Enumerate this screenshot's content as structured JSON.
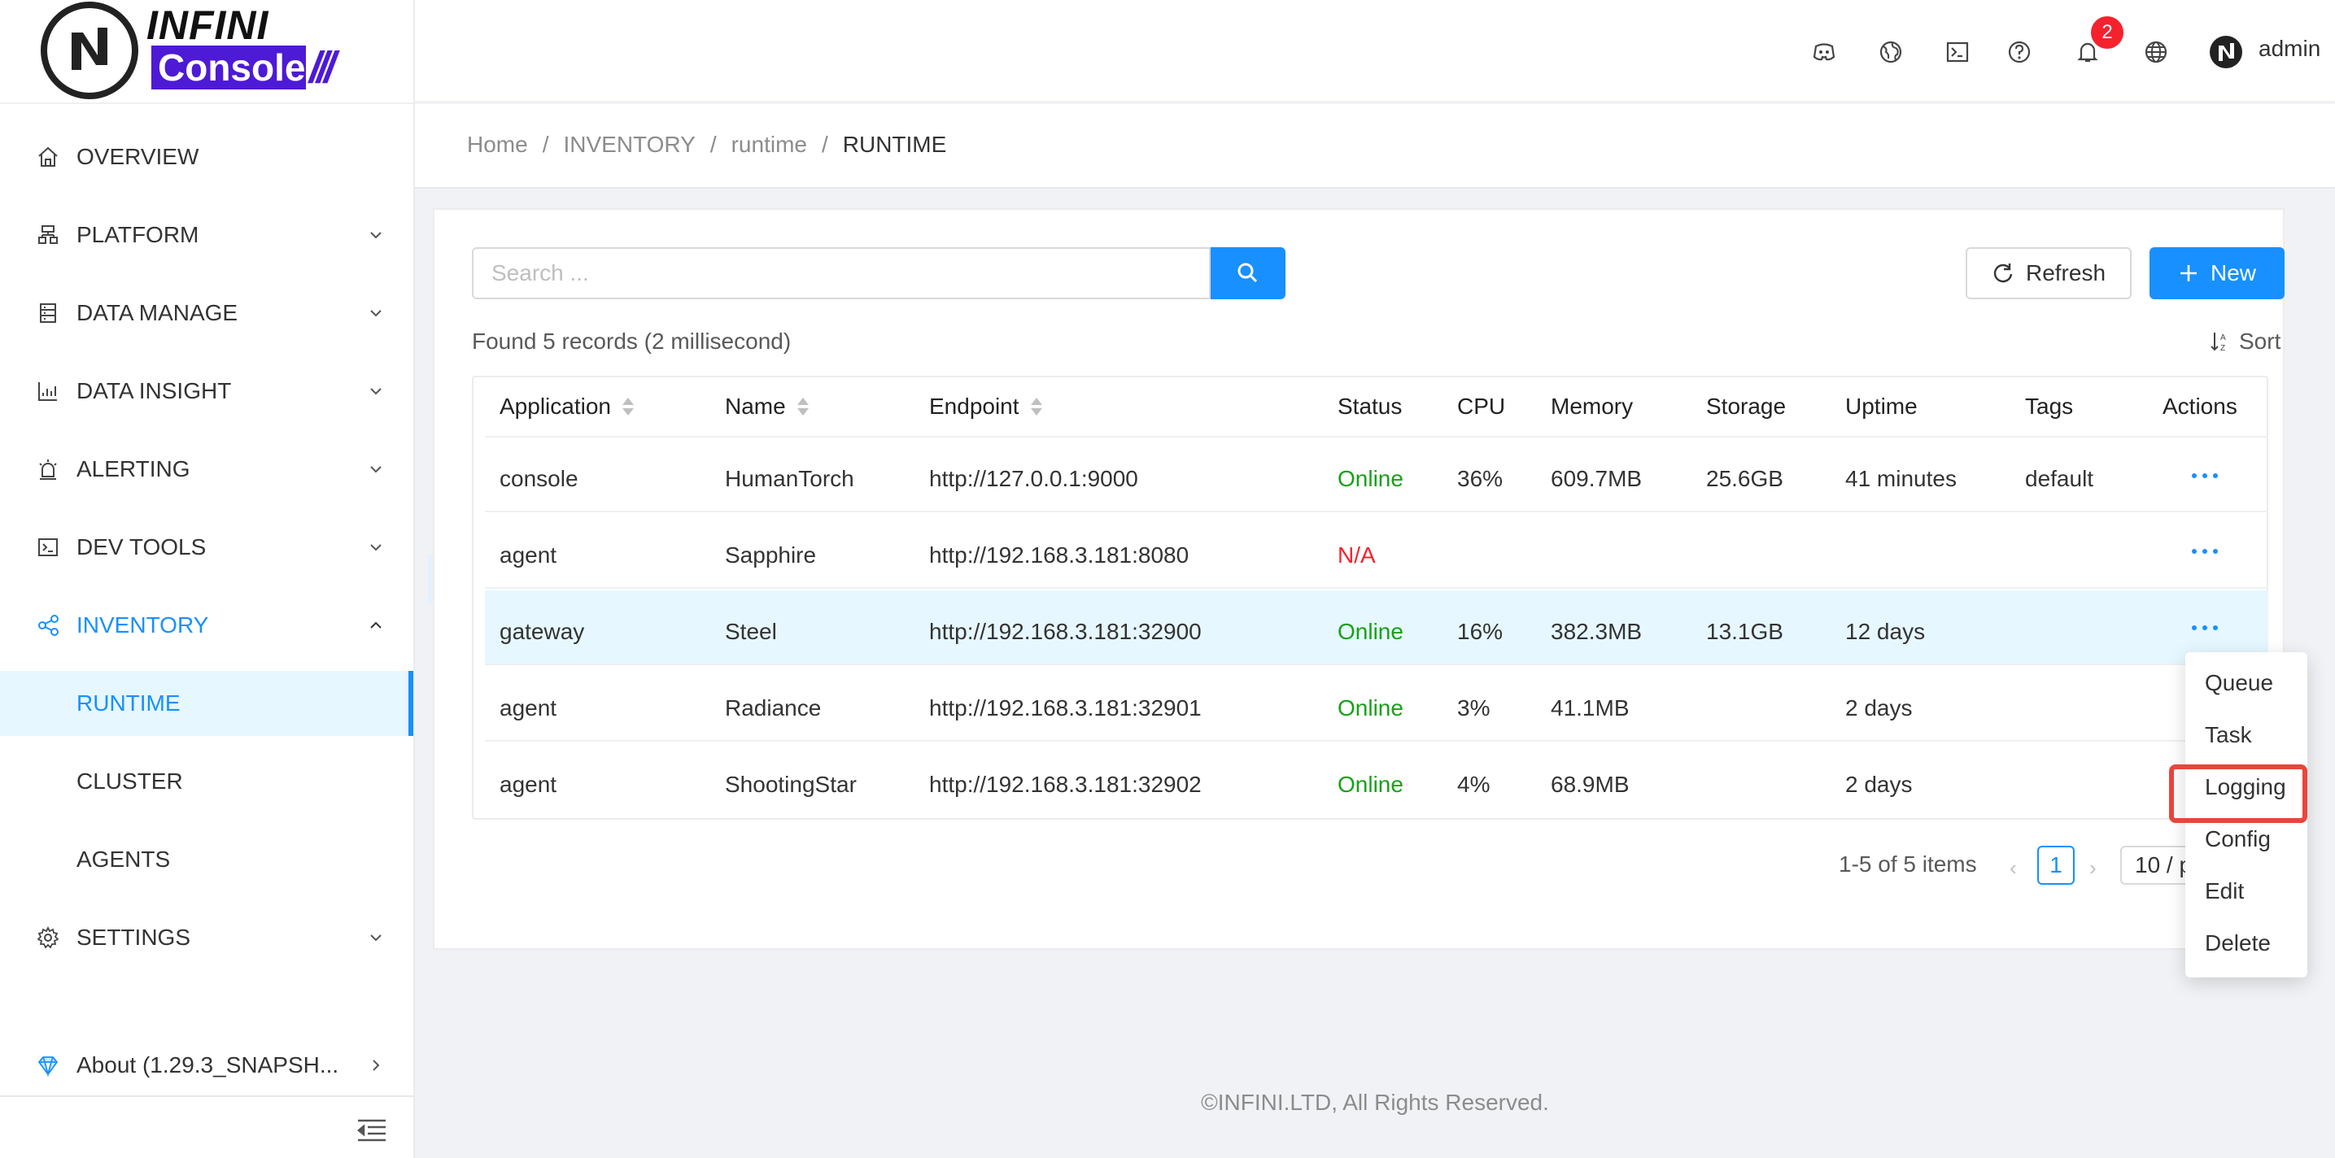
{
  "logo": {
    "line1": "INFINI",
    "line2": "Console",
    "slashes": "///"
  },
  "sidebar": {
    "items": [
      {
        "label": "OVERVIEW",
        "icon": "home-icon"
      },
      {
        "label": "PLATFORM",
        "icon": "cluster-icon"
      },
      {
        "label": "DATA MANAGE",
        "icon": "database-icon"
      },
      {
        "label": "DATA INSIGHT",
        "icon": "chart-icon"
      },
      {
        "label": "ALERTING",
        "icon": "alarm-icon"
      },
      {
        "label": "DEV TOOLS",
        "icon": "terminal-icon"
      },
      {
        "label": "INVENTORY",
        "icon": "share-icon"
      },
      {
        "label": "SETTINGS",
        "icon": "gear-icon"
      }
    ],
    "inventory_sub": [
      "RUNTIME",
      "CLUSTER",
      "AGENTS"
    ],
    "about": "About (1.29.3_SNAPSH..."
  },
  "header": {
    "notification_count": "2",
    "username": "admin"
  },
  "breadcrumb": [
    "Home",
    "INVENTORY",
    "runtime",
    "RUNTIME"
  ],
  "toolbar": {
    "search_placeholder": "Search ...",
    "refresh": "Refresh",
    "new": "New"
  },
  "summary": "Found 5 records (2 millisecond)",
  "sort_label": "Sort",
  "table": {
    "columns": [
      "Application",
      "Name",
      "Endpoint",
      "Status",
      "CPU",
      "Memory",
      "Storage",
      "Uptime",
      "Tags",
      "Actions"
    ],
    "rows": [
      {
        "application": "console",
        "name": "HumanTorch",
        "endpoint": "http://127.0.0.1:9000",
        "status": "Online",
        "cpu": "36%",
        "memory": "609.7MB",
        "storage": "25.6GB",
        "uptime": "41 minutes",
        "tags": "default"
      },
      {
        "application": "agent",
        "name": "Sapphire",
        "endpoint": "http://192.168.3.181:8080",
        "status": "N/A",
        "cpu": "",
        "memory": "",
        "storage": "",
        "uptime": "",
        "tags": ""
      },
      {
        "application": "gateway",
        "name": "Steel",
        "endpoint": "http://192.168.3.181:32900",
        "status": "Online",
        "cpu": "16%",
        "memory": "382.3MB",
        "storage": "13.1GB",
        "uptime": "12 days",
        "tags": ""
      },
      {
        "application": "agent",
        "name": "Radiance",
        "endpoint": "http://192.168.3.181:32901",
        "status": "Online",
        "cpu": "3%",
        "memory": "41.1MB",
        "storage": "",
        "uptime": "2 days",
        "tags": ""
      },
      {
        "application": "agent",
        "name": "ShootingStar",
        "endpoint": "http://192.168.3.181:32902",
        "status": "Online",
        "cpu": "4%",
        "memory": "68.9MB",
        "storage": "",
        "uptime": "2 days",
        "tags": ""
      }
    ]
  },
  "pagination": {
    "summary": "1-5 of 5 items",
    "current": "1",
    "page_size": "10 / p"
  },
  "actions_menu": [
    "Queue",
    "Task",
    "Logging",
    "Config",
    "Edit",
    "Delete"
  ],
  "footer": "©INFINI.LTD, All Rights Reserved.",
  "colors": {
    "primary": "#1890ff",
    "online": "#18a118",
    "na": "#f5222d",
    "brand": "#4d1ad6",
    "highlight_box": "#e8453c"
  }
}
